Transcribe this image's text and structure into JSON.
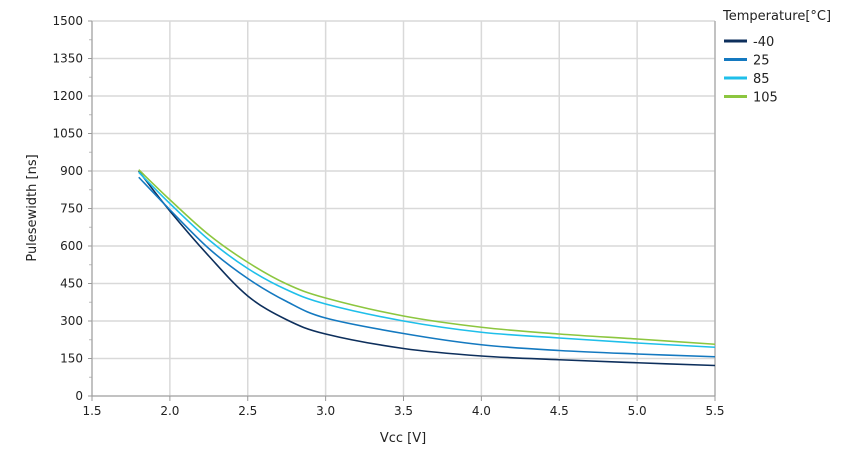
{
  "chart_data": {
    "type": "line",
    "title": "",
    "xlabel": "Vcc [V]",
    "ylabel": "Pulesewidth [ns]",
    "xlim": [
      1.5,
      5.5
    ],
    "ylim": [
      0,
      1500
    ],
    "xticks": [
      "1.5",
      "2.0",
      "2.5",
      "3.0",
      "3.5",
      "4.0",
      "4.5",
      "5.0",
      "5.5"
    ],
    "yticks": [
      "0",
      "150",
      "300",
      "450",
      "600",
      "750",
      "900",
      "1050",
      "1200",
      "1350",
      "1500"
    ],
    "grid": true,
    "legend_title": "Temperature[°C]",
    "legend_position": "top-right-outside",
    "x": [
      1.8,
      2.0,
      2.25,
      2.5,
      2.75,
      3.0,
      3.5,
      4.0,
      4.5,
      5.0,
      5.5
    ],
    "series": [
      {
        "name": "-40",
        "color": "#0d2f5c",
        "values": [
          900,
          740,
          560,
          400,
          305,
          248,
          190,
          160,
          145,
          133,
          122
        ]
      },
      {
        "name": "25",
        "color": "#1479c0",
        "values": [
          875,
          745,
          590,
          470,
          378,
          312,
          250,
          205,
          182,
          168,
          157
        ]
      },
      {
        "name": "85",
        "color": "#1fbfea",
        "values": [
          895,
          770,
          625,
          510,
          425,
          368,
          300,
          255,
          232,
          212,
          195
        ]
      },
      {
        "name": "105",
        "color": "#8cc63f",
        "values": [
          905,
          785,
          645,
          535,
          448,
          392,
          320,
          275,
          248,
          228,
          207
        ]
      }
    ]
  }
}
